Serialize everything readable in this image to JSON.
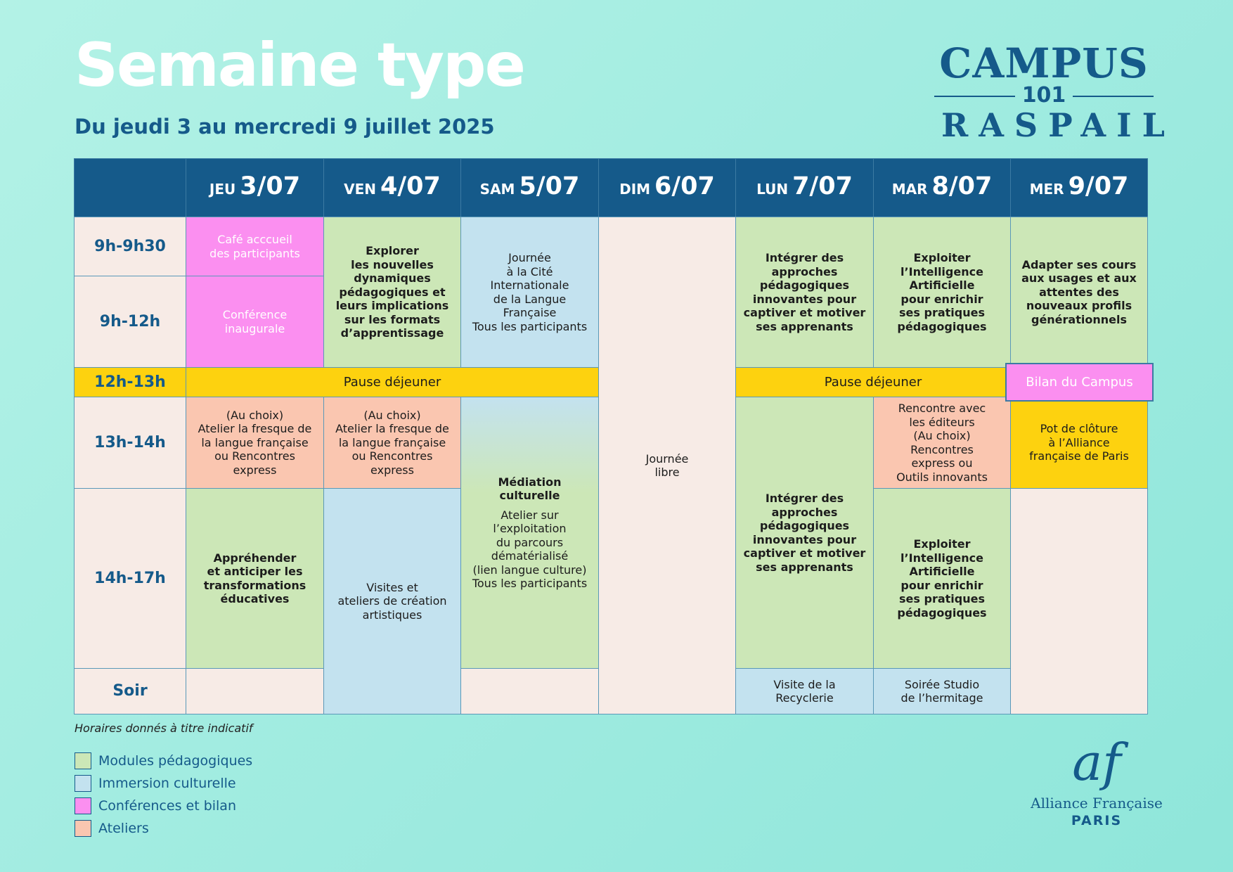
{
  "header": {
    "title": "Semaine type",
    "subtitle": "Du jeudi 3 au mercredi 9 juillet 2025"
  },
  "campus_logo": {
    "line1": "CAMPUS",
    "line2": "101",
    "line3": "RASPAIL"
  },
  "days": [
    {
      "dow": "JEU",
      "date": "3/07"
    },
    {
      "dow": "VEN",
      "date": "4/07"
    },
    {
      "dow": "SAM",
      "date": "5/07"
    },
    {
      "dow": "DIM",
      "date": "6/07"
    },
    {
      "dow": "LUN",
      "date": "7/07"
    },
    {
      "dow": "MAR",
      "date": "8/07"
    },
    {
      "dow": "MER",
      "date": "9/07"
    }
  ],
  "times": [
    "9h-9h30",
    "9h-12h",
    "12h-13h",
    "13h-14h",
    "14h-17h",
    "Soir"
  ],
  "cells": {
    "jeu_cafe": "Café acccueil\ndes participants",
    "jeu_conf": "Conférence\ninaugurale",
    "ven_morning": "Explorer\nles nouvelles\ndynamiques\npédagogiques et\nleurs implications\nsur les formats\nd’apprentissage",
    "sam_morning": "Journée\nà la Cité\nInternationale\nde la Langue\nFrançaise\nTous les participants",
    "dim_all": "Journée\nlibre",
    "lun_morning": "Intégrer des\napproches\npédagogiques\ninnovantes pour\ncaptiver et motiver\nses apprenants",
    "mar_morning": "Exploiter\nl’Intelligence\nArtificielle\npour enrichir\nses pratiques\npédagogiques",
    "mer_morning": "Adapter ses cours\naux usages et aux\nattentes des\nnouveaux profils\ngénérationnels",
    "lunch_a": "Pause déjeuner",
    "lunch_b": "Pause déjeuner",
    "bilan": "Bilan du Campus",
    "jeu_atelier": "(Au choix)\nAtelier la fresque de\nla langue française\nou Rencontres\nexpress",
    "ven_atelier": "(Au choix)\nAtelier la fresque de\nla langue française\nou Rencontres\nexpress",
    "sam_med_title": "Médiation\nculturelle",
    "sam_med_text": "Atelier sur\nl’exploitation\ndu parcours\ndématérialisé\n(lien langue culture)\nTous les participants",
    "lun_afternoon": "Intégrer des\napproches\npédagogiques\ninnovantes pour\ncaptiver et motiver\nses apprenants",
    "mar_rencontre": "Rencontre avec\nles éditeurs\n(Au choix)\nRencontres\nexpress ou\nOutils innovants",
    "mer_pot": "Pot de clôture\nà l’Alliance\nfrançaise de Paris",
    "jeu_afternoon": "Appréhender\net anticiper les\ntransformations\néducatives",
    "ven_visites": "Visites et\nateliers de création\nartistiques",
    "mar_afternoon": "Exploiter\nl’Intelligence\nArtificielle\npour enrichir\nses pratiques\npédagogiques",
    "lun_soir": "Visite de la\nRecyclerie",
    "mar_soir": "Soirée Studio\nde l’hermitage"
  },
  "note": "Horaires donnés à titre indicatif",
  "legend": [
    {
      "label": "Modules pédagogiques",
      "color": "#cce7b7"
    },
    {
      "label": "Immersion culturelle",
      "color": "#c3e2ef"
    },
    {
      "label": "Conférences et bilan",
      "color": "#fb8ff0"
    },
    {
      "label": "Ateliers",
      "color": "#fac6b0"
    }
  ],
  "af_logo": {
    "mark": "af",
    "name": "Alliance Française",
    "city": "PARIS"
  },
  "colors": {
    "navy": "#155a8a",
    "green": "#cce7b7",
    "blue": "#c3e2ef",
    "pink": "#fb8ff0",
    "salmon": "#fac6b0",
    "yellow": "#fdd20f",
    "beige": "#f7ebe6"
  }
}
